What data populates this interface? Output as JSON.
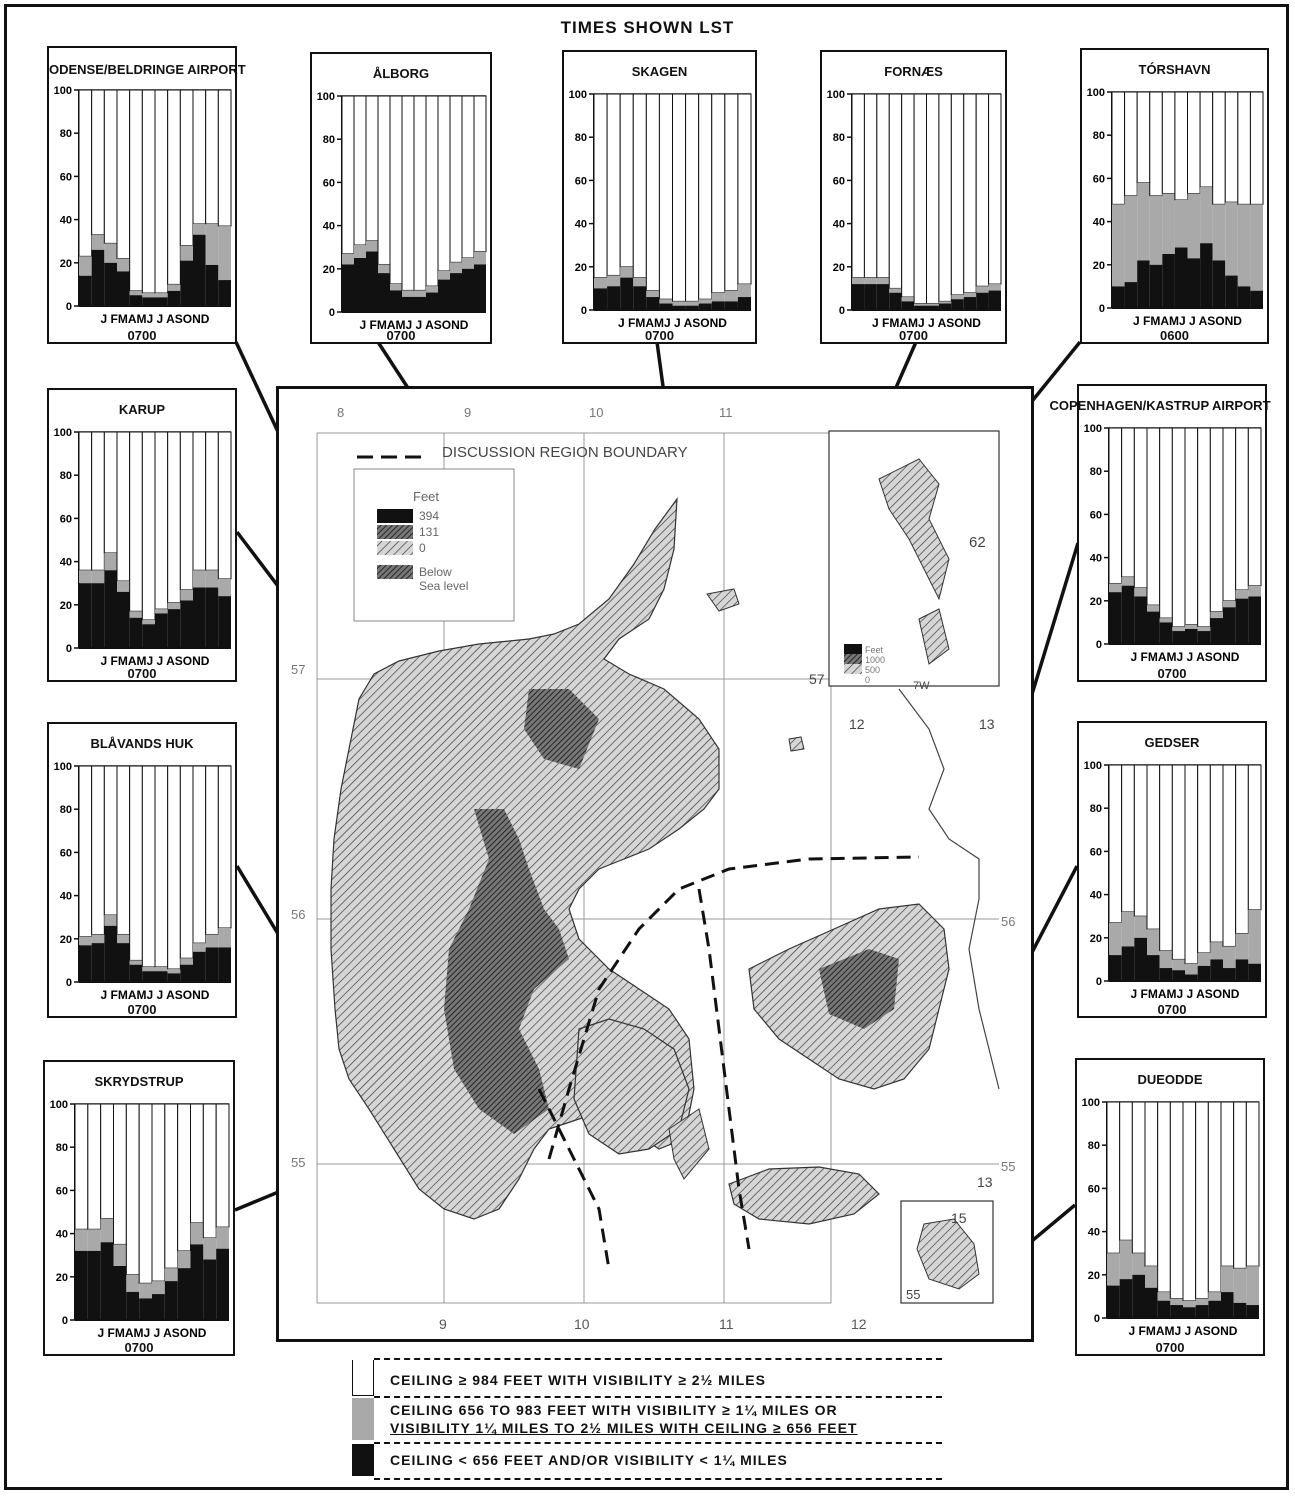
{
  "header": {
    "title": "TIMES SHOWN LST"
  },
  "colors": {
    "ink": "#111111",
    "vfr": "#ffffff",
    "marginal": "#a9a9a9",
    "ifr": "#111111",
    "land": "#cfcfcf",
    "high_land": "#555555"
  },
  "axis": {
    "ticks": [
      "100",
      "80",
      "60",
      "40",
      "20",
      "0"
    ],
    "months": "J FMAMJ J ASOND"
  },
  "chart_data": [
    {
      "type": "bar",
      "title": "ODENSE/BELDRINGE AIRPORT",
      "time": "0700",
      "ylim": [
        0,
        100
      ],
      "categories": [
        "J",
        "F",
        "M",
        "A",
        "M",
        "J",
        "J",
        "A",
        "S",
        "O",
        "N",
        "D"
      ],
      "series": [
        {
          "values": [
            14,
            26,
            20,
            16,
            5,
            4,
            4,
            7,
            21,
            33,
            19,
            12
          ]
        },
        {
          "values": [
            9,
            7,
            9,
            6,
            2,
            2,
            2,
            3,
            7,
            5,
            19,
            25
          ]
        }
      ]
    },
    {
      "type": "bar",
      "title": "ÅLBORG",
      "time": "0700",
      "ylim": [
        0,
        100
      ],
      "categories": [
        "J",
        "F",
        "M",
        "A",
        "M",
        "J",
        "J",
        "A",
        "S",
        "O",
        "N",
        "D"
      ],
      "series": [
        {
          "values": [
            22,
            25,
            28,
            18,
            10,
            7,
            7,
            9,
            15,
            18,
            20,
            22
          ]
        },
        {
          "values": [
            5,
            6,
            5,
            4,
            3,
            3,
            3,
            3,
            4,
            5,
            5,
            6
          ]
        }
      ]
    },
    {
      "type": "bar",
      "title": "SKAGEN",
      "time": "0700",
      "ylim": [
        0,
        100
      ],
      "categories": [
        "J",
        "F",
        "M",
        "A",
        "M",
        "J",
        "J",
        "A",
        "S",
        "O",
        "N",
        "D"
      ],
      "series": [
        {
          "values": [
            10,
            11,
            15,
            11,
            6,
            3,
            2,
            2,
            3,
            4,
            4,
            6
          ]
        },
        {
          "values": [
            5,
            5,
            5,
            4,
            3,
            2,
            2,
            2,
            2,
            4,
            5,
            6
          ]
        }
      ]
    },
    {
      "type": "bar",
      "title": "FORNÆS",
      "time": "0700",
      "ylim": [
        0,
        100
      ],
      "categories": [
        "J",
        "F",
        "M",
        "A",
        "M",
        "J",
        "J",
        "A",
        "S",
        "O",
        "N",
        "D"
      ],
      "series": [
        {
          "values": [
            12,
            12,
            12,
            8,
            4,
            2,
            2,
            3,
            5,
            6,
            8,
            9
          ]
        },
        {
          "values": [
            3,
            3,
            3,
            2,
            2,
            1,
            1,
            1,
            2,
            2,
            3,
            3
          ]
        }
      ]
    },
    {
      "type": "bar",
      "title": "TÓRSHAVN",
      "time": "0600",
      "ylim": [
        0,
        100
      ],
      "categories": [
        "J",
        "F",
        "M",
        "A",
        "M",
        "J",
        "J",
        "A",
        "S",
        "O",
        "N",
        "D"
      ],
      "series": [
        {
          "values": [
            10,
            12,
            22,
            20,
            25,
            28,
            23,
            30,
            22,
            15,
            10,
            8
          ]
        },
        {
          "values": [
            38,
            40,
            36,
            32,
            28,
            22,
            30,
            26,
            26,
            34,
            38,
            40
          ]
        }
      ]
    },
    {
      "type": "bar",
      "title": "KARUP",
      "time": "0700",
      "ylim": [
        0,
        100
      ],
      "categories": [
        "J",
        "F",
        "M",
        "A",
        "M",
        "J",
        "J",
        "A",
        "S",
        "O",
        "N",
        "D"
      ],
      "series": [
        {
          "values": [
            30,
            30,
            36,
            26,
            14,
            11,
            16,
            18,
            22,
            28,
            28,
            24
          ]
        },
        {
          "values": [
            6,
            6,
            8,
            5,
            3,
            2,
            2,
            3,
            5,
            8,
            8,
            8
          ]
        }
      ]
    },
    {
      "type": "bar",
      "title": "COPENHAGEN/KASTRUP AIRPORT",
      "time": "0700",
      "ylim": [
        0,
        100
      ],
      "categories": [
        "J",
        "F",
        "M",
        "A",
        "M",
        "J",
        "J",
        "A",
        "S",
        "O",
        "N",
        "D"
      ],
      "series": [
        {
          "values": [
            24,
            27,
            22,
            15,
            10,
            6,
            7,
            6,
            12,
            17,
            21,
            22
          ]
        },
        {
          "values": [
            4,
            4,
            4,
            3,
            2,
            2,
            2,
            2,
            3,
            3,
            4,
            5
          ]
        }
      ]
    },
    {
      "type": "bar",
      "title": "BLÅVANDS HUK",
      "time": "0700",
      "ylim": [
        0,
        100
      ],
      "categories": [
        "J",
        "F",
        "M",
        "A",
        "M",
        "J",
        "J",
        "A",
        "S",
        "O",
        "N",
        "D"
      ],
      "series": [
        {
          "values": [
            17,
            18,
            26,
            18,
            8,
            5,
            5,
            4,
            8,
            14,
            16,
            16
          ]
        },
        {
          "values": [
            4,
            4,
            5,
            4,
            2,
            2,
            2,
            2,
            3,
            4,
            6,
            9
          ]
        }
      ]
    },
    {
      "type": "bar",
      "title": "GEDSER",
      "time": "0700",
      "ylim": [
        0,
        100
      ],
      "categories": [
        "J",
        "F",
        "M",
        "A",
        "M",
        "J",
        "J",
        "A",
        "S",
        "O",
        "N",
        "D"
      ],
      "series": [
        {
          "values": [
            12,
            16,
            20,
            12,
            6,
            5,
            3,
            7,
            10,
            6,
            10,
            8
          ]
        },
        {
          "values": [
            15,
            16,
            10,
            12,
            8,
            5,
            5,
            6,
            8,
            10,
            12,
            25
          ]
        }
      ]
    },
    {
      "type": "bar",
      "title": "SKRYDSTRUP",
      "time": "0700",
      "ylim": [
        0,
        100
      ],
      "categories": [
        "J",
        "F",
        "M",
        "A",
        "M",
        "J",
        "J",
        "A",
        "S",
        "O",
        "N",
        "D"
      ],
      "series": [
        {
          "values": [
            32,
            32,
            36,
            25,
            13,
            10,
            12,
            18,
            24,
            35,
            28,
            33
          ]
        },
        {
          "values": [
            10,
            10,
            11,
            10,
            8,
            7,
            6,
            6,
            8,
            10,
            10,
            10
          ]
        }
      ]
    },
    {
      "type": "bar",
      "title": "DUEODDE",
      "time": "0700",
      "ylim": [
        0,
        100
      ],
      "categories": [
        "J",
        "F",
        "M",
        "A",
        "M",
        "J",
        "J",
        "A",
        "S",
        "O",
        "N",
        "D"
      ],
      "series": [
        {
          "values": [
            15,
            18,
            20,
            14,
            8,
            6,
            5,
            6,
            8,
            12,
            7,
            6
          ]
        },
        {
          "values": [
            15,
            18,
            10,
            10,
            4,
            3,
            3,
            3,
            4,
            12,
            16,
            18
          ]
        }
      ]
    }
  ],
  "map": {
    "boundary_label": "DISCUSSION REGION BOUNDARY",
    "elevation_legend": {
      "title": "Feet",
      "entries": [
        "394",
        "131",
        "0",
        "Below",
        "Sea level"
      ]
    },
    "lon_labels_top": [
      "8",
      "9",
      "10",
      "11"
    ],
    "lon_labels_bottom": [
      "9",
      "10",
      "11",
      "12"
    ],
    "lat_labels": [
      "57",
      "56",
      "55"
    ],
    "inset_faroe": {
      "lat": "62",
      "lon": "7W",
      "legend_entries": [
        "Feet",
        "1000",
        "500",
        "0"
      ]
    },
    "inset_sweden": {
      "lat": "57",
      "lon_a": "12",
      "lon_b": "13"
    },
    "inset_bornholm": {
      "lon": "15",
      "lat": "55"
    },
    "other_labels": {
      "lat_56_right": "56",
      "lat_55_right": "55",
      "lon_13": "13"
    }
  },
  "legend": {
    "rows": [
      {
        "lines": [
          "CEILING  ≥ 984 FEET WITH VISIBILITY  ≥ 2½ MILES"
        ]
      },
      {
        "lines": [
          "CEILING 656 TO 983 FEET WITH VISIBILITY  ≥ 1¼ MILES OR",
          "VISIBILITY 1¼ MILES TO 2½ MILES WITH CEILING  ≥ 656 FEET"
        ]
      },
      {
        "lines": [
          "CEILING < 656 FEET AND/OR VISIBILITY < 1¼ MILES"
        ]
      }
    ]
  }
}
